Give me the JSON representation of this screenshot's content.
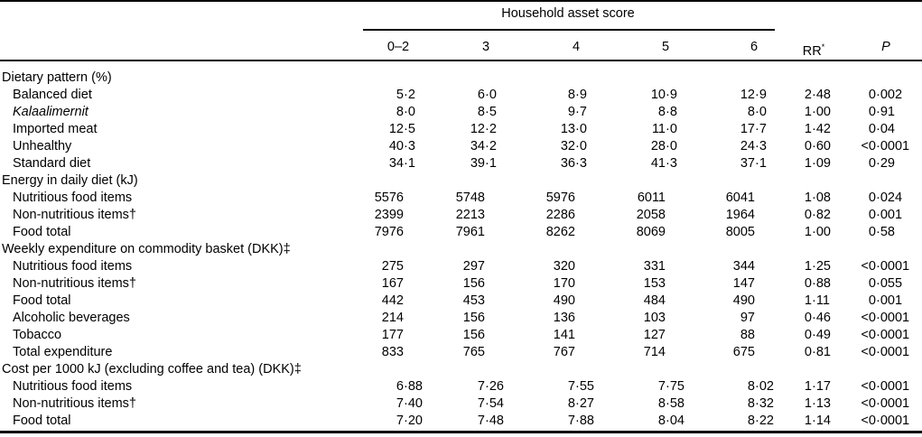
{
  "colors": {
    "text": "#000000",
    "background": "#ffffff",
    "rule": "#000000"
  },
  "table": {
    "spanner_title": "Household asset score",
    "score_columns": [
      "0–2",
      "3",
      "4",
      "5",
      "6"
    ],
    "rr_header": "RR",
    "rr_header_sup": "*",
    "p_header": "P",
    "sections": [
      {
        "header": "Dietary pattern (%)",
        "rows": [
          {
            "label": "Balanced diet",
            "italic": false,
            "values": [
              "5·2",
              "6·0",
              "8·9",
              "10·9",
              "12·9",
              "2·48",
              "0·002"
            ]
          },
          {
            "label": "Kalaalimernit",
            "italic": true,
            "values": [
              "8·0",
              "8·5",
              "9·7",
              "8·8",
              "8·0",
              "1·00",
              "0·91"
            ]
          },
          {
            "label": "Imported meat",
            "italic": false,
            "values": [
              "12·5",
              "12·2",
              "13·0",
              "11·0",
              "17·7",
              "1·42",
              "0·04"
            ]
          },
          {
            "label": "Unhealthy",
            "italic": false,
            "values": [
              "40·3",
              "34·2",
              "32·0",
              "28·0",
              "24·3",
              "0·60",
              "<0·0001"
            ]
          },
          {
            "label": "Standard diet",
            "italic": false,
            "values": [
              "34·1",
              "39·1",
              "36·3",
              "41·3",
              "37·1",
              "1·09",
              "0·29"
            ]
          }
        ]
      },
      {
        "header": "Energy in daily diet (kJ)",
        "rows": [
          {
            "label": "Nutritious food items",
            "italic": false,
            "values": [
              "5576",
              "5748",
              "5976",
              "6011",
              "6041",
              "1·08",
              "0·024"
            ]
          },
          {
            "label": "Non-nutritious items†",
            "italic": false,
            "values": [
              "2399",
              "2213",
              "2286",
              "2058",
              "1964",
              "0·82",
              "0·001"
            ]
          },
          {
            "label": "Food total",
            "italic": false,
            "values": [
              "7976",
              "7961",
              "8262",
              "8069",
              "8005",
              "1·00",
              "0·58"
            ]
          }
        ]
      },
      {
        "header": "Weekly expenditure on commodity basket (DKK)‡",
        "rows": [
          {
            "label": "Nutritious food items",
            "italic": false,
            "values": [
              "275",
              "297",
              "320",
              "331",
              "344",
              "1·25",
              "<0·0001"
            ]
          },
          {
            "label": "Non-nutritious items†",
            "italic": false,
            "values": [
              "167",
              "156",
              "170",
              "153",
              "147",
              "0·88",
              "0·055"
            ]
          },
          {
            "label": "Food total",
            "italic": false,
            "values": [
              "442",
              "453",
              "490",
              "484",
              "490",
              "1·11",
              "0·001"
            ]
          },
          {
            "label": "Alcoholic beverages",
            "italic": false,
            "values": [
              "214",
              "156",
              "136",
              "103",
              "97",
              "0·46",
              "<0·0001"
            ]
          },
          {
            "label": "Tobacco",
            "italic": false,
            "values": [
              "177",
              "156",
              "141",
              "127",
              "88",
              "0·49",
              "<0·0001"
            ]
          },
          {
            "label": "Total expenditure",
            "italic": false,
            "values": [
              "833",
              "765",
              "767",
              "714",
              "675",
              "0·81",
              "<0·0001"
            ]
          }
        ]
      },
      {
        "header": "Cost per 1000 kJ (excluding coffee and tea) (DKK)‡",
        "rows": [
          {
            "label": "Nutritious food items",
            "italic": false,
            "values": [
              "6·88",
              "7·26",
              "7·55",
              "7·75",
              "8·02",
              "1·17",
              "<0·0001"
            ]
          },
          {
            "label": "Non-nutritious items†",
            "italic": false,
            "values": [
              "7·40",
              "7·54",
              "8·27",
              "8·58",
              "8·32",
              "1·13",
              "<0·0001"
            ]
          },
          {
            "label": "Food total",
            "italic": false,
            "values": [
              "7·20",
              "7·48",
              "7·88",
              "8·04",
              "8·22",
              "1·14",
              "<0·0001"
            ]
          }
        ]
      }
    ]
  }
}
